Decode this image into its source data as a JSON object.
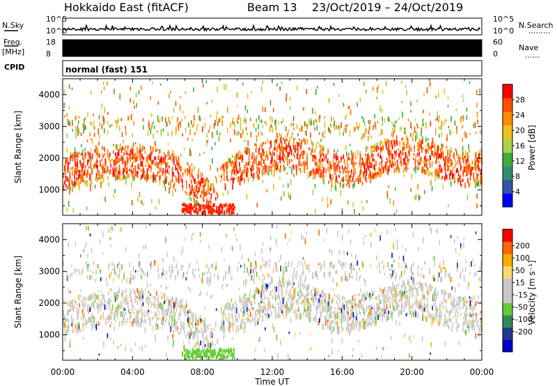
{
  "header": {
    "station": "Hokkaido East (fitACF)",
    "beam": "Beam 13",
    "date_range": "23/Oct/2019 – 24/Oct/2019"
  },
  "side_labels": {
    "nsky": "N.Sky",
    "nsearch": "N.Search",
    "freq_a": "Freq.",
    "freq_b": "[MHz]",
    "nave": "Nave",
    "cpid": "CPID"
  },
  "noise_panel": {
    "left_ticks": [
      "10^5",
      "10^0"
    ],
    "right_ticks": [
      "10^5",
      "10^0"
    ]
  },
  "freq_panel": {
    "left_ticks": [
      "18",
      "8"
    ],
    "right_ticks": [
      "60",
      "0"
    ]
  },
  "cpid_panel": {
    "text": "normal (fast) 151"
  },
  "x_axis": {
    "ticks": [
      "00:00",
      "04:00",
      "08:00",
      "12:00",
      "16:00",
      "20:00",
      "00:00"
    ],
    "label": "Time UT"
  },
  "colors": {
    "power": [
      "#0000ff",
      "#3355aa",
      "#2f8f6f",
      "#3caf3c",
      "#a8d24a",
      "#f0c020",
      "#ff8c00",
      "#ff5000",
      "#ff0000"
    ],
    "velocity": [
      "#ff0000",
      "#ff6600",
      "#ffaa00",
      "#ffd76e",
      "#c8c8c8",
      "#c8c8c8",
      "#66cc33",
      "#2e8b57",
      "#1e3c8c",
      "#0000cc"
    ]
  },
  "chart_data": [
    {
      "type": "heatmap",
      "name": "power",
      "ylabel": "Slant Range [km]",
      "yticks": [
        1000,
        2000,
        3000,
        4000
      ],
      "ylim": [
        200,
        4500
      ],
      "xlim_hours": [
        0,
        24
      ],
      "colorbar": {
        "label": "Power [dB]",
        "ticks": [
          "4",
          "8",
          "12",
          "16",
          "20",
          "24",
          "28"
        ],
        "range": [
          0,
          32
        ]
      }
    },
    {
      "type": "heatmap",
      "name": "velocity",
      "ylabel": "Slant Range [km]",
      "yticks": [
        1000,
        2000,
        3000,
        4000
      ],
      "ylim": [
        200,
        4500
      ],
      "xlim_hours": [
        0,
        24
      ],
      "colorbar": {
        "label": "Velocity [m s⁻¹]",
        "ticks": [
          "200",
          "100",
          "50",
          "15",
          "-15",
          "-50",
          "-100",
          "-200"
        ]
      }
    }
  ]
}
